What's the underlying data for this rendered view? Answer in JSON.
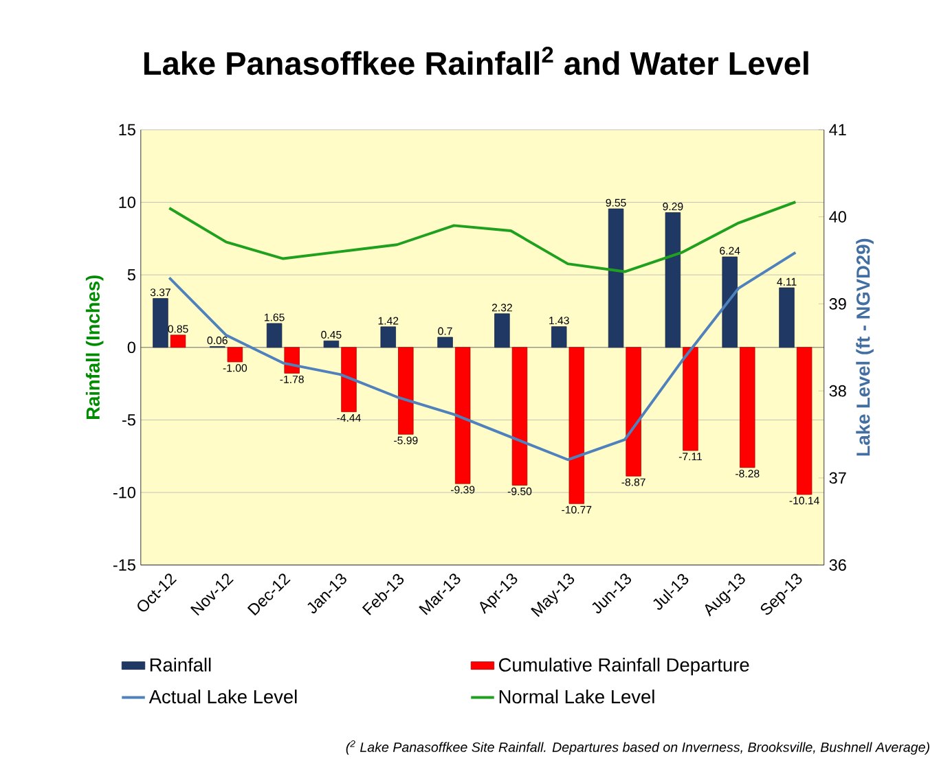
{
  "chart_data": {
    "type": "bar",
    "title": "Lake Panasoffkee Rainfall$^{2}$ and Water Level",
    "ylabel": "Rainfall (Inches)",
    "y2label": "Lake Level (ft - NGVD29)",
    "categories": [
      "Oct-12",
      "Nov-12",
      "Dec-12",
      "Jan-13",
      "Feb-13",
      "Mar-13",
      "Apr-13",
      "May-13",
      "Jun-13",
      "Jul-13",
      "Aug-13",
      "Sep-13"
    ],
    "series": [
      {
        "name": "Rainfall",
        "color": "#1f3864",
        "values": [
          3.37,
          0.06,
          1.65,
          0.45,
          1.42,
          0.7,
          2.32,
          1.43,
          9.55,
          9.29,
          6.24,
          4.11
        ],
        "value_labels": [
          "3.37",
          "0.06",
          "1.65",
          "0.45",
          "1.42",
          "0.7",
          "2.32",
          "1.43",
          "9.55",
          "9.29",
          "6.24",
          "4.11"
        ]
      },
      {
        "name": "Cumulative Rainfall Departure",
        "color": "#ff0000",
        "values": [
          0.85,
          -1.0,
          -1.78,
          -4.44,
          -5.99,
          -9.39,
          -9.5,
          -10.77,
          -8.87,
          -7.11,
          -8.28,
          -10.14
        ],
        "value_labels": [
          "0.85",
          "-1.00",
          "-1.78",
          "-4.44",
          "-5.99",
          "-9.39",
          "-9.50",
          "-10.77",
          "-8.87",
          "-7.11",
          "-8.28",
          "-10.14"
        ]
      },
      {
        "name": "Actual Lake Level",
        "type": "line",
        "axis": "y2",
        "color": "#4f81bd",
        "values": [
          39.3,
          38.64,
          38.32,
          38.19,
          37.93,
          37.73,
          37.47,
          37.21,
          37.44,
          38.34,
          39.18,
          39.59
        ]
      },
      {
        "name": "Normal Lake Level",
        "type": "line",
        "axis": "y2",
        "color": "#1fa01f",
        "values": [
          40.1,
          39.71,
          39.52,
          39.6,
          39.68,
          39.9,
          39.84,
          39.46,
          39.37,
          39.59,
          39.93,
          40.17
        ]
      }
    ],
    "ylim": [
      -15,
      15
    ],
    "yticks": [
      -15,
      -10,
      -5,
      0,
      5,
      10,
      15
    ],
    "y2lim": [
      36,
      41
    ],
    "y2ticks": [
      36,
      37,
      38,
      39,
      40,
      41
    ],
    "grid": "y",
    "legend": "bottom",
    "annotations": [
      "($^{2}$ Lake Panasoffkee Site Rainfall. Departures based on Inverness, Brooksville, Bushnell Average)"
    ]
  }
}
